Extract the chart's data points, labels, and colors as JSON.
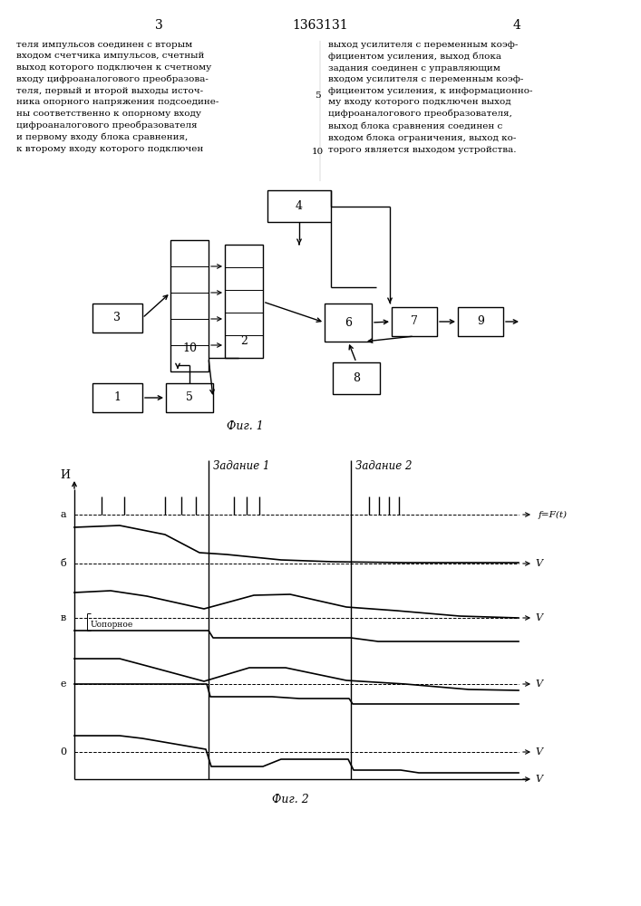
{
  "page_number_left": "3",
  "page_number_center": "1363131",
  "page_number_right": "4",
  "text_left": "теля импульсов соединен с вторым\nвходом счетчика импульсов, счетный\nвыход которого подключен к счетному\nвходу цифроаналогового преобразова-\nтеля, первый и второй выходы источ-\nника опорного напряжения подсоедине-\nны соответственно к опорному входу\nцифроаналогового преобразователя\nи первому входу блока сравнения,\nк второму входу которого подключен",
  "text_right": "выход усилителя с переменным коэф-\nфициентом усиления, выход блока\nзадания соединен с управляющим\nвходом усилителя с переменным коэф-\nфициентом усиления, к информационно-\nму входу которого подключен выход\nцифроаналогового преобразователя,\nвыход блока сравнения соединен с\nвходом блока ограничения, выход ко-\nторого является выходом устройства.",
  "fig1_caption": "Фиг. 1",
  "fig2_caption": "Фиг. 2",
  "bg_color": "#ffffff",
  "lw": 1.0
}
